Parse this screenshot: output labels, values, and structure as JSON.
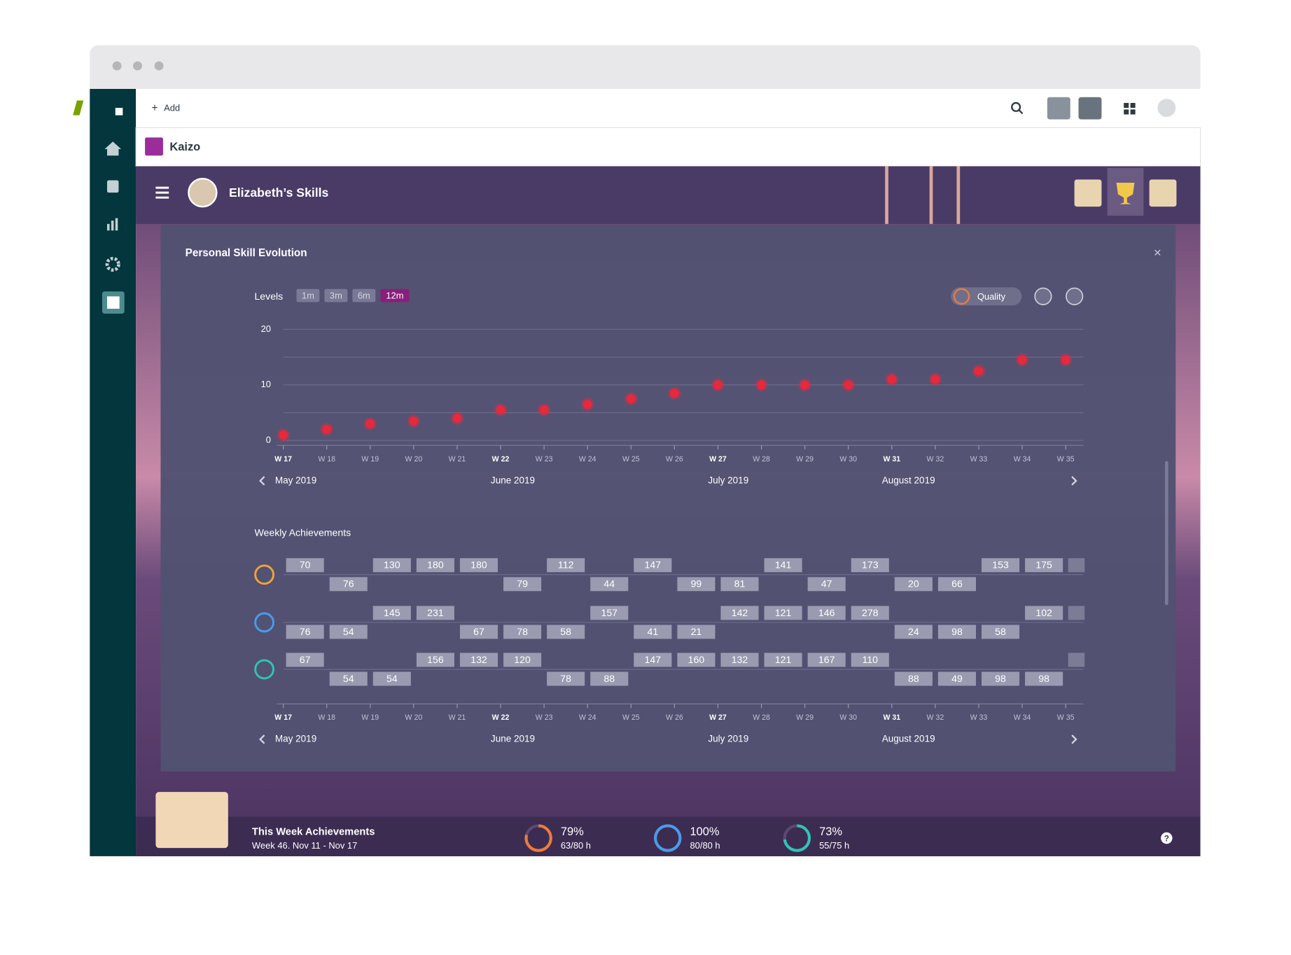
{
  "app": {
    "add": "Add",
    "workspace": "Kaizo",
    "page_title": "Elizabeth’s Skills"
  },
  "panel": {
    "title": "Personal Skill Evolution"
  },
  "chart_data": {
    "type": "scatter",
    "y_label": "Levels",
    "ranges": [
      "1m",
      "3m",
      "6m",
      "12m"
    ],
    "selected_range": 3,
    "metric": "Quality",
    "color": "#e8283c",
    "categories": [
      "W 17",
      "W 18",
      "W 19",
      "W 20",
      "W 21",
      "W 22",
      "W 23",
      "W 24",
      "W 25",
      "W 26",
      "W 27",
      "W 28",
      "W 29",
      "W 30",
      "W 31",
      "W 32",
      "W 33",
      "W 34",
      "W 35"
    ],
    "values": [
      1,
      2,
      3,
      3.5,
      4,
      5.5,
      5.5,
      6.5,
      7.5,
      8.5,
      10,
      10,
      10,
      10,
      11,
      11,
      12.5,
      14.5,
      14.5
    ],
    "ylim": [
      0,
      20
    ],
    "yticks": [
      0,
      10,
      20
    ],
    "grid_lines": [
      0,
      5,
      10,
      15,
      20
    ],
    "months": [
      {
        "label": "May 2019",
        "start": 0
      },
      {
        "label": "June 2019",
        "start": 5
      },
      {
        "label": "July 2019",
        "start": 10
      },
      {
        "label": "August 2019",
        "start": 14
      }
    ]
  },
  "achievements": {
    "title": "Weekly Achievements",
    "rows": [
      {
        "color": "#f2a23a",
        "above": [
          70,
          null,
          130,
          180,
          180,
          null,
          112,
          null,
          147,
          null,
          null,
          141,
          null,
          173,
          null,
          null,
          153,
          175
        ],
        "below": [
          null,
          76,
          null,
          null,
          null,
          79,
          null,
          44,
          null,
          99,
          81,
          null,
          47,
          null,
          20,
          66,
          null,
          null
        ]
      },
      {
        "color": "#4a9be8",
        "above": [
          null,
          null,
          145,
          231,
          null,
          null,
          null,
          157,
          null,
          null,
          142,
          121,
          146,
          278,
          null,
          null,
          null,
          102
        ],
        "below": [
          76,
          54,
          null,
          null,
          67,
          78,
          58,
          null,
          41,
          21,
          null,
          null,
          null,
          null,
          24,
          98,
          58,
          null
        ]
      },
      {
        "color": "#2ec4b6",
        "above": [
          67,
          null,
          null,
          156,
          132,
          120,
          null,
          null,
          147,
          160,
          132,
          121,
          167,
          110,
          null,
          null,
          null,
          null
        ],
        "below": [
          null,
          54,
          54,
          null,
          null,
          null,
          78,
          88,
          null,
          null,
          null,
          null,
          null,
          null,
          88,
          49,
          98,
          98
        ]
      }
    ]
  },
  "this_week": {
    "title": "This Week Achievements",
    "subtitle": "Week 46. Nov 11 - Nov 17",
    "stats": [
      {
        "value": 79,
        "value_label": "79%",
        "hours": "63/80 h",
        "color": "#f07a3a"
      },
      {
        "value": 100,
        "value_label": "100%",
        "hours": "80/80 h",
        "color": "#4a9be8"
      },
      {
        "value": 73,
        "value_label": "73%",
        "hours": "55/75 h",
        "color": "#2ec4b6"
      }
    ]
  }
}
